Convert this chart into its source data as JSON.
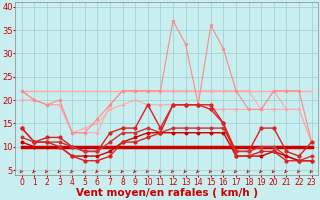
{
  "background_color": "#c8eef0",
  "grid_color": "#9ecece",
  "xlabel": "Vent moyen/en rafales ( km/h )",
  "xlabel_color": "#cc0000",
  "xlabel_fontsize": 7.5,
  "tick_color": "#cc0000",
  "tick_fontsize": 5.5,
  "ytick_fontsize": 6,
  "xlim": [
    -0.5,
    23.5
  ],
  "ylim": [
    4,
    41
  ],
  "yticks": [
    5,
    10,
    15,
    20,
    25,
    30,
    35,
    40
  ],
  "xticks": [
    0,
    1,
    2,
    3,
    4,
    5,
    6,
    7,
    8,
    9,
    10,
    11,
    12,
    13,
    14,
    15,
    16,
    17,
    18,
    19,
    20,
    21,
    22,
    23
  ],
  "y_rafales_main": [
    22,
    20,
    19,
    20,
    13,
    13,
    16,
    19,
    22,
    22,
    22,
    22,
    37,
    32,
    19,
    36,
    31,
    22,
    18,
    18,
    22,
    22,
    22,
    11
  ],
  "y_rafales_band1": [
    22,
    20,
    19,
    19,
    13,
    13,
    13,
    19,
    22,
    22,
    22,
    22,
    22,
    22,
    22,
    22,
    22,
    22,
    22,
    18,
    22,
    18,
    18,
    11
  ],
  "y_flat22": [
    22,
    22,
    22,
    22,
    22,
    22,
    22,
    22,
    22,
    22,
    22,
    22,
    22,
    22,
    22,
    22,
    22,
    22,
    22,
    22,
    22,
    22,
    22,
    22
  ],
  "y_moyen_upper": [
    20,
    20,
    19,
    19,
    13,
    14,
    15,
    18,
    19,
    20,
    19,
    19,
    19,
    19,
    19,
    18,
    18,
    18,
    18,
    18,
    18,
    18,
    18,
    11
  ],
  "y_moyen_mid1": [
    14,
    11,
    12,
    12,
    10,
    9,
    9,
    13,
    14,
    14,
    19,
    14,
    19,
    19,
    19,
    19,
    15,
    9,
    9,
    14,
    14,
    9,
    8,
    11
  ],
  "y_moyen_mid2": [
    12,
    11,
    11,
    11,
    10,
    9,
    9,
    11,
    13,
    13,
    14,
    13,
    14,
    14,
    14,
    14,
    14,
    9,
    9,
    10,
    10,
    8,
    7,
    8
  ],
  "y_flat10": [
    10,
    10,
    10,
    10,
    10,
    10,
    10,
    10,
    10,
    10,
    10,
    10,
    10,
    10,
    10,
    10,
    10,
    10,
    10,
    10,
    10,
    10,
    10,
    10
  ],
  "y_moyen_low": [
    11,
    10,
    10,
    10,
    8,
    8,
    8,
    9,
    11,
    12,
    13,
    13,
    13,
    13,
    13,
    13,
    13,
    8,
    8,
    8,
    9,
    8,
    7,
    7
  ],
  "y_moyen_lowest": [
    14,
    11,
    11,
    10,
    8,
    7,
    7,
    8,
    11,
    11,
    12,
    13,
    19,
    19,
    19,
    18,
    15,
    8,
    8,
    9,
    9,
    7,
    7,
    7
  ],
  "color_light_pink": "#ffaaaa",
  "color_mid_pink": "#ff8888",
  "color_dark_red1": "#dd2222",
  "color_dark_red2": "#cc0000",
  "color_med_red": "#cc3333",
  "arrow_color": "#cc0000"
}
